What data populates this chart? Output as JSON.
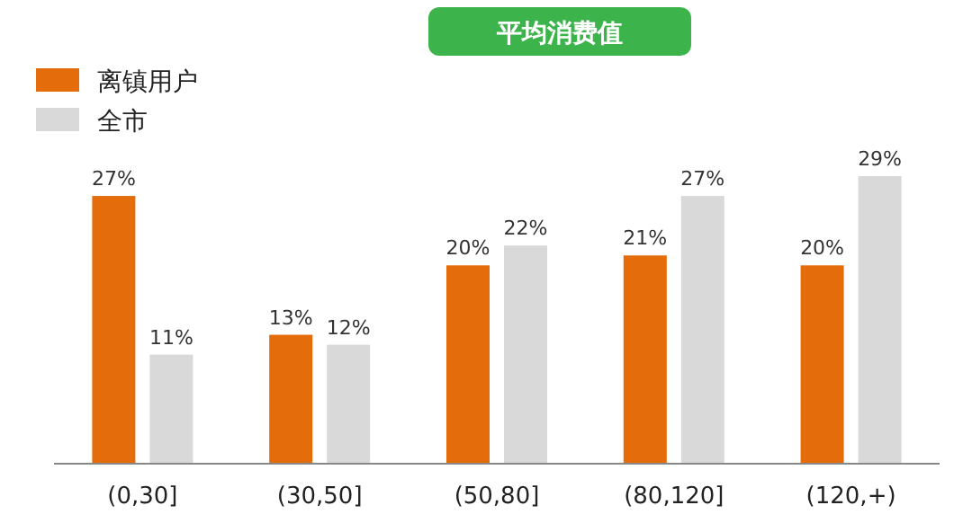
{
  "chart_data": {
    "type": "bar",
    "title": "平均消费值",
    "categories": [
      "(0,30]",
      "(30,50]",
      "(50,80]",
      "(80,120]",
      "(120,+)"
    ],
    "series": [
      {
        "name": "离镇用户",
        "color": "#e46c0a",
        "values": [
          27,
          13,
          20,
          21,
          20
        ],
        "value_labels": [
          "27%",
          "13%",
          "20%",
          "21%",
          "20%"
        ]
      },
      {
        "name": "全市",
        "color": "#d9d9d9",
        "values": [
          11,
          12,
          22,
          27,
          29
        ],
        "value_labels": [
          "11%",
          "12%",
          "22%",
          "27%",
          "29%"
        ]
      }
    ],
    "legend": "top left"
  }
}
